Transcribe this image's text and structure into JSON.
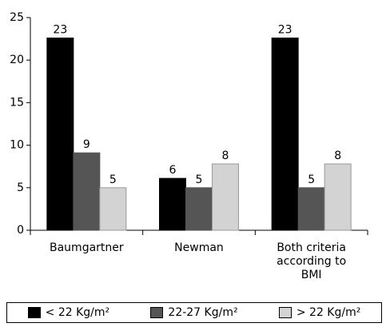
{
  "chart_data": {
    "type": "bar",
    "categories": [
      "Baumgartner",
      "Newman",
      "Both criteria according to BMI"
    ],
    "series": [
      {
        "name": "< 22 Kg/m²",
        "color": "#000000",
        "values": [
          22.6,
          6.1,
          22.6
        ],
        "value_labels": [
          "23",
          "6",
          "23"
        ]
      },
      {
        "name": "22-27 Kg/m²",
        "color": "#555555",
        "values": [
          9.1,
          5,
          5
        ],
        "value_labels": [
          "9",
          "5",
          "5"
        ]
      },
      {
        "name": "> 22 Kg/m²",
        "color": "#d3d3d3",
        "values": [
          5,
          7.8,
          7.8
        ],
        "value_labels": [
          "5",
          "8",
          "8"
        ]
      }
    ],
    "ylim": [
      0,
      25
    ],
    "yticks": [
      0,
      5,
      10,
      15,
      20,
      25
    ],
    "grid": false,
    "legend": "bottom"
  }
}
